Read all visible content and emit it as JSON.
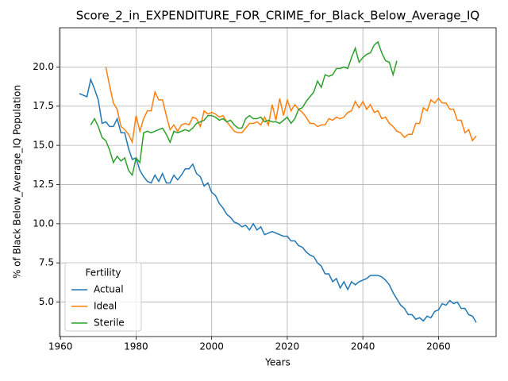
{
  "chart_data": {
    "type": "line",
    "title": "Score_2_in_EXPENDITURE_FOR_CRIME_for_Black_Below_Average_IQ",
    "xlabel": "Years",
    "ylabel": "% of Black Below_Average_IQ Population",
    "x": [
      1965,
      1966,
      1967,
      1968,
      1969,
      1970,
      1971,
      1972,
      1973,
      1974,
      1975,
      1976,
      1977,
      1978,
      1979,
      1980,
      1981,
      1982,
      1983,
      1984,
      1985,
      1986,
      1987,
      1988,
      1989,
      1990,
      1991,
      1992,
      1993,
      1994,
      1995,
      1996,
      1997,
      1998,
      1999,
      2000,
      2001,
      2002,
      2003,
      2004,
      2005,
      2006,
      2007,
      2008,
      2009,
      2010,
      2011,
      2012,
      2013,
      2014,
      2015,
      2016,
      2017,
      2018,
      2019,
      2020,
      2021,
      2022,
      2023,
      2024,
      2025,
      2026,
      2027,
      2028,
      2029,
      2030,
      2031,
      2032,
      2033,
      2034,
      2035,
      2036,
      2037,
      2038,
      2039,
      2040,
      2041,
      2042,
      2043,
      2044,
      2045,
      2046,
      2047,
      2048,
      2049,
      2050,
      2051,
      2052,
      2053,
      2054,
      2055,
      2056,
      2057,
      2058,
      2059,
      2060,
      2061,
      2062,
      2063,
      2064,
      2065,
      2066,
      2067,
      2068,
      2069,
      2070
    ],
    "series": [
      {
        "name": "Actual",
        "color": "#1f77b4",
        "values": [
          18.3,
          18.2,
          18.1,
          19.2,
          18.6,
          17.9,
          16.4,
          16.5,
          16.2,
          16.2,
          16.7,
          15.8,
          15.8,
          14.8,
          14.1,
          14.2,
          13.4,
          13.0,
          12.7,
          12.6,
          13.1,
          12.7,
          13.2,
          12.6,
          12.6,
          13.1,
          12.8,
          13.1,
          13.5,
          13.5,
          13.8,
          13.2,
          13.0,
          12.4,
          12.6,
          12.0,
          11.8,
          11.3,
          11.0,
          10.6,
          10.4,
          10.1,
          10.0,
          9.8,
          9.9,
          9.6,
          10.0,
          9.6,
          9.8,
          9.3,
          9.4,
          9.5,
          9.4,
          9.3,
          9.2,
          9.2,
          8.9,
          8.9,
          8.6,
          8.5,
          8.2,
          8.0,
          7.9,
          7.5,
          7.3,
          6.8,
          6.8,
          6.3,
          6.5,
          5.9,
          6.3,
          5.8,
          6.3,
          6.1,
          6.3,
          6.4,
          6.5,
          6.7,
          6.7,
          6.7,
          6.6,
          6.4,
          6.1,
          5.6,
          5.2,
          4.8,
          4.6,
          4.2,
          4.2,
          3.9,
          4.0,
          3.8,
          4.1,
          4.0,
          4.4,
          4.5,
          4.9,
          4.8,
          5.1,
          4.9,
          5.0,
          4.6,
          4.6,
          4.2,
          4.1,
          3.7
        ]
      },
      {
        "name": "Ideal",
        "color": "#ff7f0e",
        "values": [
          null,
          null,
          null,
          null,
          null,
          null,
          null,
          20.0,
          18.8,
          17.7,
          17.3,
          16.2,
          16.0,
          15.7,
          15.2,
          16.9,
          15.9,
          16.7,
          17.2,
          17.2,
          18.4,
          17.9,
          17.9,
          16.9,
          16.0,
          16.3,
          15.9,
          16.3,
          16.4,
          16.3,
          16.8,
          16.7,
          16.2,
          17.2,
          17.0,
          17.1,
          17.0,
          16.8,
          16.9,
          16.5,
          16.2,
          15.9,
          15.8,
          15.8,
          16.1,
          16.4,
          16.4,
          16.5,
          16.3,
          16.8,
          16.3,
          17.6,
          16.6,
          18.0,
          16.9,
          17.9,
          17.2,
          17.6,
          17.3,
          17.1,
          16.8,
          16.4,
          16.4,
          16.2,
          16.3,
          16.3,
          16.7,
          16.6,
          16.8,
          16.7,
          16.8,
          17.1,
          17.2,
          17.8,
          17.4,
          17.8,
          17.3,
          17.6,
          17.1,
          17.2,
          16.7,
          16.8,
          16.4,
          16.2,
          15.9,
          15.8,
          15.5,
          15.7,
          15.7,
          16.4,
          16.4,
          17.4,
          17.2,
          17.9,
          17.7,
          18.0,
          17.7,
          17.7,
          17.3,
          17.3,
          16.6,
          16.6,
          15.8,
          16.0,
          15.3,
          15.6
        ]
      },
      {
        "name": "Sterile",
        "color": "#2ca02c",
        "values": [
          null,
          null,
          null,
          16.3,
          16.7,
          16.2,
          15.5,
          15.3,
          14.7,
          13.9,
          14.3,
          14.0,
          14.2,
          13.4,
          13.1,
          14.2,
          13.9,
          15.8,
          15.9,
          15.8,
          15.9,
          16.0,
          16.1,
          15.7,
          15.2,
          15.9,
          15.8,
          15.9,
          16.0,
          15.9,
          16.1,
          16.4,
          16.5,
          16.6,
          16.9,
          16.9,
          16.8,
          16.6,
          16.7,
          16.5,
          16.6,
          16.3,
          16.1,
          16.1,
          16.7,
          16.9,
          16.7,
          16.7,
          16.8,
          16.5,
          16.6,
          16.5,
          16.5,
          16.4,
          16.6,
          16.8,
          16.4,
          16.7,
          17.3,
          17.4,
          17.8,
          18.1,
          18.4,
          19.1,
          18.7,
          19.5,
          19.4,
          19.5,
          19.9,
          19.9,
          20.0,
          19.9,
          20.6,
          21.2,
          20.3,
          20.6,
          20.8,
          20.9,
          21.4,
          21.6,
          20.9,
          20.4,
          20.3,
          19.5,
          20.4,
          null,
          null,
          null,
          null,
          null,
          null,
          null,
          null,
          null,
          null,
          null,
          null,
          null,
          null,
          null,
          null,
          null,
          null,
          null,
          null,
          null
        ]
      }
    ],
    "xlim": [
      1959.75,
      2075.25
    ],
    "ylim": [
      2.8,
      22.5
    ],
    "xticks": [
      1960,
      1980,
      2000,
      2020,
      2040,
      2060
    ],
    "yticks": [
      {
        "value": 5,
        "label": "5.0"
      },
      {
        "value": 7.5,
        "label": "7.5"
      },
      {
        "value": 10,
        "label": "10.0"
      },
      {
        "value": 12.5,
        "label": "12.5"
      },
      {
        "value": 15,
        "label": "15.0"
      },
      {
        "value": 17.5,
        "label": "17.5"
      },
      {
        "value": 20,
        "label": "20.0"
      }
    ],
    "grid": true,
    "legend_title": "Fertility",
    "legend_position": "lower left"
  }
}
